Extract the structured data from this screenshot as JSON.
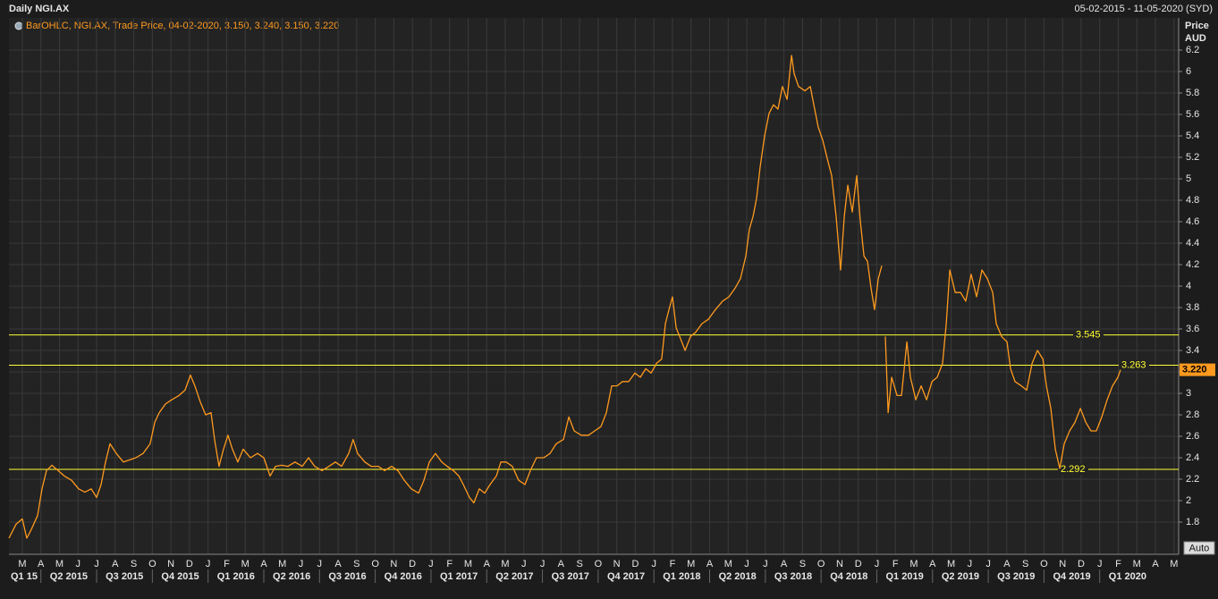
{
  "header": {
    "title": "Daily NGI.AX",
    "date_range": "05-02-2015 - 11-05-2020 (SYD)"
  },
  "chart_data": {
    "type": "line",
    "legend": "BarOHLC, NGI.AX, Trade Price, 04-02-2020, 3.150, 3.240, 3.150, 3.220",
    "y_axis_label": "Price",
    "y_axis_unit": "AUD",
    "color": "#ff9a1f",
    "grid": true,
    "x": [
      -0.72,
      -0.34,
      0,
      0.24,
      0.48,
      0.82,
      1.06,
      1.3,
      1.59,
      1.93,
      2.26,
      2.65,
      3.03,
      3.37,
      3.71,
      4,
      4.24,
      4.48,
      4.72,
      5.06,
      5.44,
      5.78,
      6.11,
      6.5,
      6.88,
      7.13,
      7.37,
      7.7,
      8.04,
      8.43,
      8.76,
      9.05,
      9.29,
      9.58,
      9.87,
      10.16,
      10.35,
      10.59,
      10.83,
      11.07,
      11.31,
      11.6,
      11.89,
      12.28,
      12.66,
      13,
      13.34,
      13.63,
      13.96,
      14.3,
      14.68,
      15.07,
      15.41,
      15.74,
      16.13,
      16.51,
      16.85,
      17.19,
      17.57,
      17.81,
      18.05,
      18.44,
      18.78,
      19.17,
      19.5,
      19.88,
      20.22,
      20.56,
      20.94,
      21.33,
      21.62,
      21.91,
      22.24,
      22.58,
      22.87,
      23.21,
      23.5,
      23.74,
      24.07,
      24.31,
      24.6,
      24.89,
      25.18,
      25.52,
      25.76,
      26.05,
      26.38,
      26.72,
      27.06,
      27.35,
      27.68,
      28.07,
      28.41,
      28.74,
      29.13,
      29.42,
      29.71,
      30.09,
      30.48,
      30.81,
      31.15,
      31.44,
      31.73,
      32.02,
      32.31,
      32.64,
      32.98,
      33.27,
      33.56,
      33.85,
      34.14,
      34.42,
      34.62,
      34.81,
      35,
      35.2,
      35.39,
      35.68,
      35.97,
      36.25,
      36.59,
      36.93,
      37.31,
      37.7,
      38.04,
      38.37,
      38.66,
      38.95,
      39.14,
      39.34,
      39.53,
      39.72,
      39.96,
      40.2,
      40.44,
      40.68,
      40.92,
      41.17,
      41.41,
      41.55,
      41.79,
      42.13,
      42.42,
      42.61,
      42.85,
      43.09,
      43.33,
      43.57,
      43.81,
      44.05,
      44.25,
      44.44,
      44.68,
      44.92,
      45.11,
      45.31,
      45.5,
      45.69,
      45.88,
      46.08,
      46.27,
      46.37,
      46.46,
      46.61,
      46.8,
      47.09,
      47.33,
      47.62,
      47.81,
      48.1,
      48.39,
      48.68,
      48.97,
      49.25,
      49.54,
      49.74,
      49.93,
      50.22,
      50.51,
      50.79,
      51.08,
      51.37,
      51.66,
      51.95,
      52.24,
      52.43,
      52.72,
      53.01,
      53.2,
      53.44,
      53.78,
      54.07,
      54.36,
      54.65,
      54.94,
      55.13,
      55.37,
      55.61,
      55.85,
      56.09,
      56.38,
      56.67,
      56.96,
      57.25,
      57.53,
      57.82,
      58.11,
      58.4,
      58.69,
      58.98,
      59.12
    ],
    "values": [
      1.65,
      1.78,
      1.83,
      1.65,
      1.73,
      1.86,
      2.11,
      2.28,
      2.33,
      2.28,
      2.23,
      2.19,
      2.11,
      2.08,
      2.11,
      2.03,
      2.15,
      2.36,
      2.53,
      2.44,
      2.36,
      2.38,
      2.4,
      2.44,
      2.53,
      2.73,
      2.82,
      2.9,
      2.94,
      2.98,
      3.03,
      3.17,
      3.07,
      2.92,
      2.8,
      2.82,
      2.57,
      2.32,
      2.48,
      2.61,
      2.48,
      2.36,
      2.48,
      2.4,
      2.44,
      2.4,
      2.23,
      2.32,
      2.33,
      2.32,
      2.36,
      2.32,
      2.4,
      2.32,
      2.28,
      2.32,
      2.36,
      2.32,
      2.44,
      2.57,
      2.44,
      2.36,
      2.32,
      2.32,
      2.28,
      2.32,
      2.28,
      2.19,
      2.11,
      2.07,
      2.19,
      2.36,
      2.44,
      2.36,
      2.32,
      2.28,
      2.23,
      2.15,
      2.03,
      1.98,
      2.11,
      2.07,
      2.15,
      2.23,
      2.36,
      2.36,
      2.32,
      2.19,
      2.15,
      2.28,
      2.4,
      2.4,
      2.44,
      2.53,
      2.57,
      2.78,
      2.65,
      2.61,
      2.61,
      2.65,
      2.69,
      2.82,
      3.07,
      3.07,
      3.11,
      3.11,
      3.19,
      3.15,
      3.23,
      3.19,
      3.28,
      3.32,
      3.65,
      3.78,
      3.9,
      3.61,
      3.53,
      3.4,
      3.53,
      3.57,
      3.65,
      3.69,
      3.78,
      3.86,
      3.9,
      3.98,
      4.07,
      4.28,
      4.53,
      4.65,
      4.82,
      5.11,
      5.4,
      5.61,
      5.69,
      5.65,
      5.86,
      5.74,
      6.15,
      5.98,
      5.86,
      5.82,
      5.86,
      5.69,
      5.48,
      5.36,
      5.19,
      5.03,
      4.65,
      4.15,
      4.65,
      4.94,
      4.69,
      5.03,
      4.61,
      4.28,
      4.23,
      3.98,
      3.78,
      4.07,
      4.19,
      null,
      3.53,
      2.82,
      3.15,
      2.98,
      2.98,
      3.48,
      3.15,
      2.94,
      3.07,
      2.94,
      3.11,
      3.15,
      3.28,
      3.65,
      4.15,
      3.94,
      3.94,
      3.86,
      4.11,
      3.9,
      4.15,
      4.07,
      3.94,
      3.65,
      3.53,
      3.48,
      3.23,
      3.11,
      3.07,
      3.03,
      3.28,
      3.4,
      3.32,
      3.07,
      2.86,
      2.48,
      2.3,
      2.53,
      2.65,
      2.73,
      2.86,
      2.73,
      2.65,
      2.65,
      2.78,
      2.94,
      3.07,
      3.15,
      3.22
    ],
    "last_price": {
      "value": 3.22,
      "label": "3.220"
    },
    "levels": [
      3.545,
      3.263,
      2.292
    ],
    "level_color": "#ffff33",
    "xlim": [
      -0.72,
      62.25
    ],
    "ylim": [
      1.5,
      6.5
    ],
    "yticks": [
      1.8,
      2,
      2.2,
      2.4,
      2.6,
      2.8,
      3,
      3.2,
      3.4,
      3.6,
      3.8,
      4,
      4.2,
      4.4,
      4.6,
      4.8,
      5,
      5.2,
      5.4,
      5.6,
      5.8,
      6,
      6.2
    ],
    "xticks": [
      {
        "value": 0,
        "label": "M"
      },
      {
        "value": 1,
        "label": "A"
      },
      {
        "value": 2,
        "label": "M"
      },
      {
        "value": 3,
        "label": "J"
      },
      {
        "value": 4,
        "label": "J"
      },
      {
        "value": 5,
        "label": "A"
      },
      {
        "value": 6,
        "label": "S"
      },
      {
        "value": 7,
        "label": "O"
      },
      {
        "value": 8,
        "label": "N"
      },
      {
        "value": 9,
        "label": "D"
      },
      {
        "value": 10,
        "label": "J"
      },
      {
        "value": 11,
        "label": "F"
      },
      {
        "value": 12,
        "label": "M"
      },
      {
        "value": 13,
        "label": "A"
      },
      {
        "value": 14,
        "label": "M"
      },
      {
        "value": 15,
        "label": "J"
      },
      {
        "value": 16,
        "label": "J"
      },
      {
        "value": 17,
        "label": "A"
      },
      {
        "value": 18,
        "label": "S"
      },
      {
        "value": 19,
        "label": "O"
      },
      {
        "value": 20,
        "label": "N"
      },
      {
        "value": 21,
        "label": "D"
      },
      {
        "value": 22,
        "label": "J"
      },
      {
        "value": 23,
        "label": "F"
      },
      {
        "value": 24,
        "label": "M"
      },
      {
        "value": 25,
        "label": "A"
      },
      {
        "value": 26,
        "label": "M"
      },
      {
        "value": 27,
        "label": "J"
      },
      {
        "value": 28,
        "label": "J"
      },
      {
        "value": 29,
        "label": "A"
      },
      {
        "value": 30,
        "label": "S"
      },
      {
        "value": 31,
        "label": "O"
      },
      {
        "value": 32,
        "label": "N"
      },
      {
        "value": 33,
        "label": "D"
      },
      {
        "value": 34,
        "label": "J"
      },
      {
        "value": 35,
        "label": "F"
      },
      {
        "value": 36,
        "label": "M"
      },
      {
        "value": 37,
        "label": "A"
      },
      {
        "value": 38,
        "label": "M"
      },
      {
        "value": 39,
        "label": "J"
      },
      {
        "value": 40,
        "label": "J"
      },
      {
        "value": 41,
        "label": "A"
      },
      {
        "value": 42,
        "label": "S"
      },
      {
        "value": 43,
        "label": "O"
      },
      {
        "value": 44,
        "label": "N"
      },
      {
        "value": 45,
        "label": "D"
      },
      {
        "value": 46,
        "label": "J"
      },
      {
        "value": 47,
        "label": "F"
      },
      {
        "value": 48,
        "label": "M"
      },
      {
        "value": 49,
        "label": "A"
      },
      {
        "value": 50,
        "label": "M"
      },
      {
        "value": 51,
        "label": "J"
      },
      {
        "value": 52,
        "label": "J"
      },
      {
        "value": 53,
        "label": "A"
      },
      {
        "value": 54,
        "label": "S"
      },
      {
        "value": 55,
        "label": "O"
      },
      {
        "value": 56,
        "label": "N"
      },
      {
        "value": 57,
        "label": "D"
      },
      {
        "value": 58,
        "label": "J"
      },
      {
        "value": 59,
        "label": "F"
      },
      {
        "value": 60,
        "label": "M"
      },
      {
        "value": 61,
        "label": "A"
      },
      {
        "value": 62,
        "label": "M"
      }
    ],
    "quarters": [
      {
        "value": -2,
        "label": "Q1 15"
      },
      {
        "value": 1,
        "label": "Q2 2015"
      },
      {
        "value": 4,
        "label": "Q3 2015"
      },
      {
        "value": 7,
        "label": "Q4 2015"
      },
      {
        "value": 10,
        "label": "Q1 2016"
      },
      {
        "value": 13,
        "label": "Q2 2016"
      },
      {
        "value": 16,
        "label": "Q3 2016"
      },
      {
        "value": 19,
        "label": "Q4 2016"
      },
      {
        "value": 22,
        "label": "Q1 2017"
      },
      {
        "value": 25,
        "label": "Q2 2017"
      },
      {
        "value": 28,
        "label": "Q3 2017"
      },
      {
        "value": 31,
        "label": "Q4 2017"
      },
      {
        "value": 34,
        "label": "Q1 2018"
      },
      {
        "value": 37,
        "label": "Q2 2018"
      },
      {
        "value": 40,
        "label": "Q3 2018"
      },
      {
        "value": 43,
        "label": "Q4 2018"
      },
      {
        "value": 46,
        "label": "Q1 2019"
      },
      {
        "value": 49,
        "label": "Q2 2019"
      },
      {
        "value": 52,
        "label": "Q3 2019"
      },
      {
        "value": 55,
        "label": "Q4 2019"
      },
      {
        "value": 58,
        "label": "Q1 2020"
      }
    ]
  },
  "controls": {
    "auto": "Auto"
  }
}
